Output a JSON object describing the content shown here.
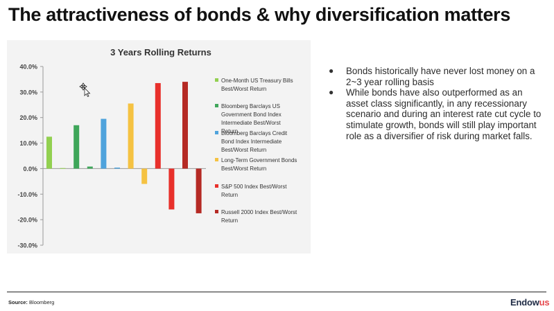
{
  "slide": {
    "title": "The attractiveness of bonds & why diversification matters",
    "bullets": [
      "Bonds historically have never lost money on a 2~3 year rolling basis",
      "While bonds have also outperformed as an asset class significantly, in any recessionary scenario and during an interest rate cut cycle to stimulate growth, bonds will still play important role as a diversifier of risk during market falls."
    ],
    "source_label": "Source:",
    "source_value": "Bloomberg",
    "brand_main": "Endow",
    "brand_accent": "us",
    "brand_color": "#1e2a44",
    "brand_accent_color": "#e5484d",
    "cursor_icon": "move-cursor-icon"
  },
  "chart_data": {
    "type": "bar",
    "title": "3 Years Rolling Returns",
    "xlabel": "",
    "ylabel": "",
    "ylim": [
      -30,
      40
    ],
    "yticks": [
      40,
      30,
      20,
      10,
      0,
      -10,
      -20,
      -30
    ],
    "ytick_labels": [
      "40.0%",
      "30.0%",
      "20.0%",
      "10.0%",
      "0.0%",
      "-10.0%",
      "-20.0%",
      "-30.0%"
    ],
    "grid": false,
    "legend_position": "right",
    "series": [
      {
        "name": "One-Month US Treasury Bills Best/Worst Return",
        "color": "#92d050",
        "values": [
          12.5,
          0.2
        ]
      },
      {
        "name": "Bloomberg Barclays US Government Bond Index Intermediate Best/Worst Return",
        "color": "#3fa65a",
        "values": [
          17.0,
          0.8
        ]
      },
      {
        "name": "Bloomberg Barclays Credit Bond Index Intermediate Best/Worst Return",
        "color": "#4fa3dc",
        "values": [
          19.5,
          0.4
        ]
      },
      {
        "name": "Long-Term Government Bonds Best/Worst Return",
        "color": "#f5c242",
        "values": [
          25.5,
          -6.0
        ]
      },
      {
        "name": "S&P 500 Index Best/Worst Return",
        "color": "#e8302b",
        "values": [
          33.5,
          -16.0
        ]
      },
      {
        "name": "Russell 2000 Index Best/Worst Return",
        "color": "#b52a24",
        "values": [
          34.0,
          -17.5
        ]
      }
    ]
  }
}
